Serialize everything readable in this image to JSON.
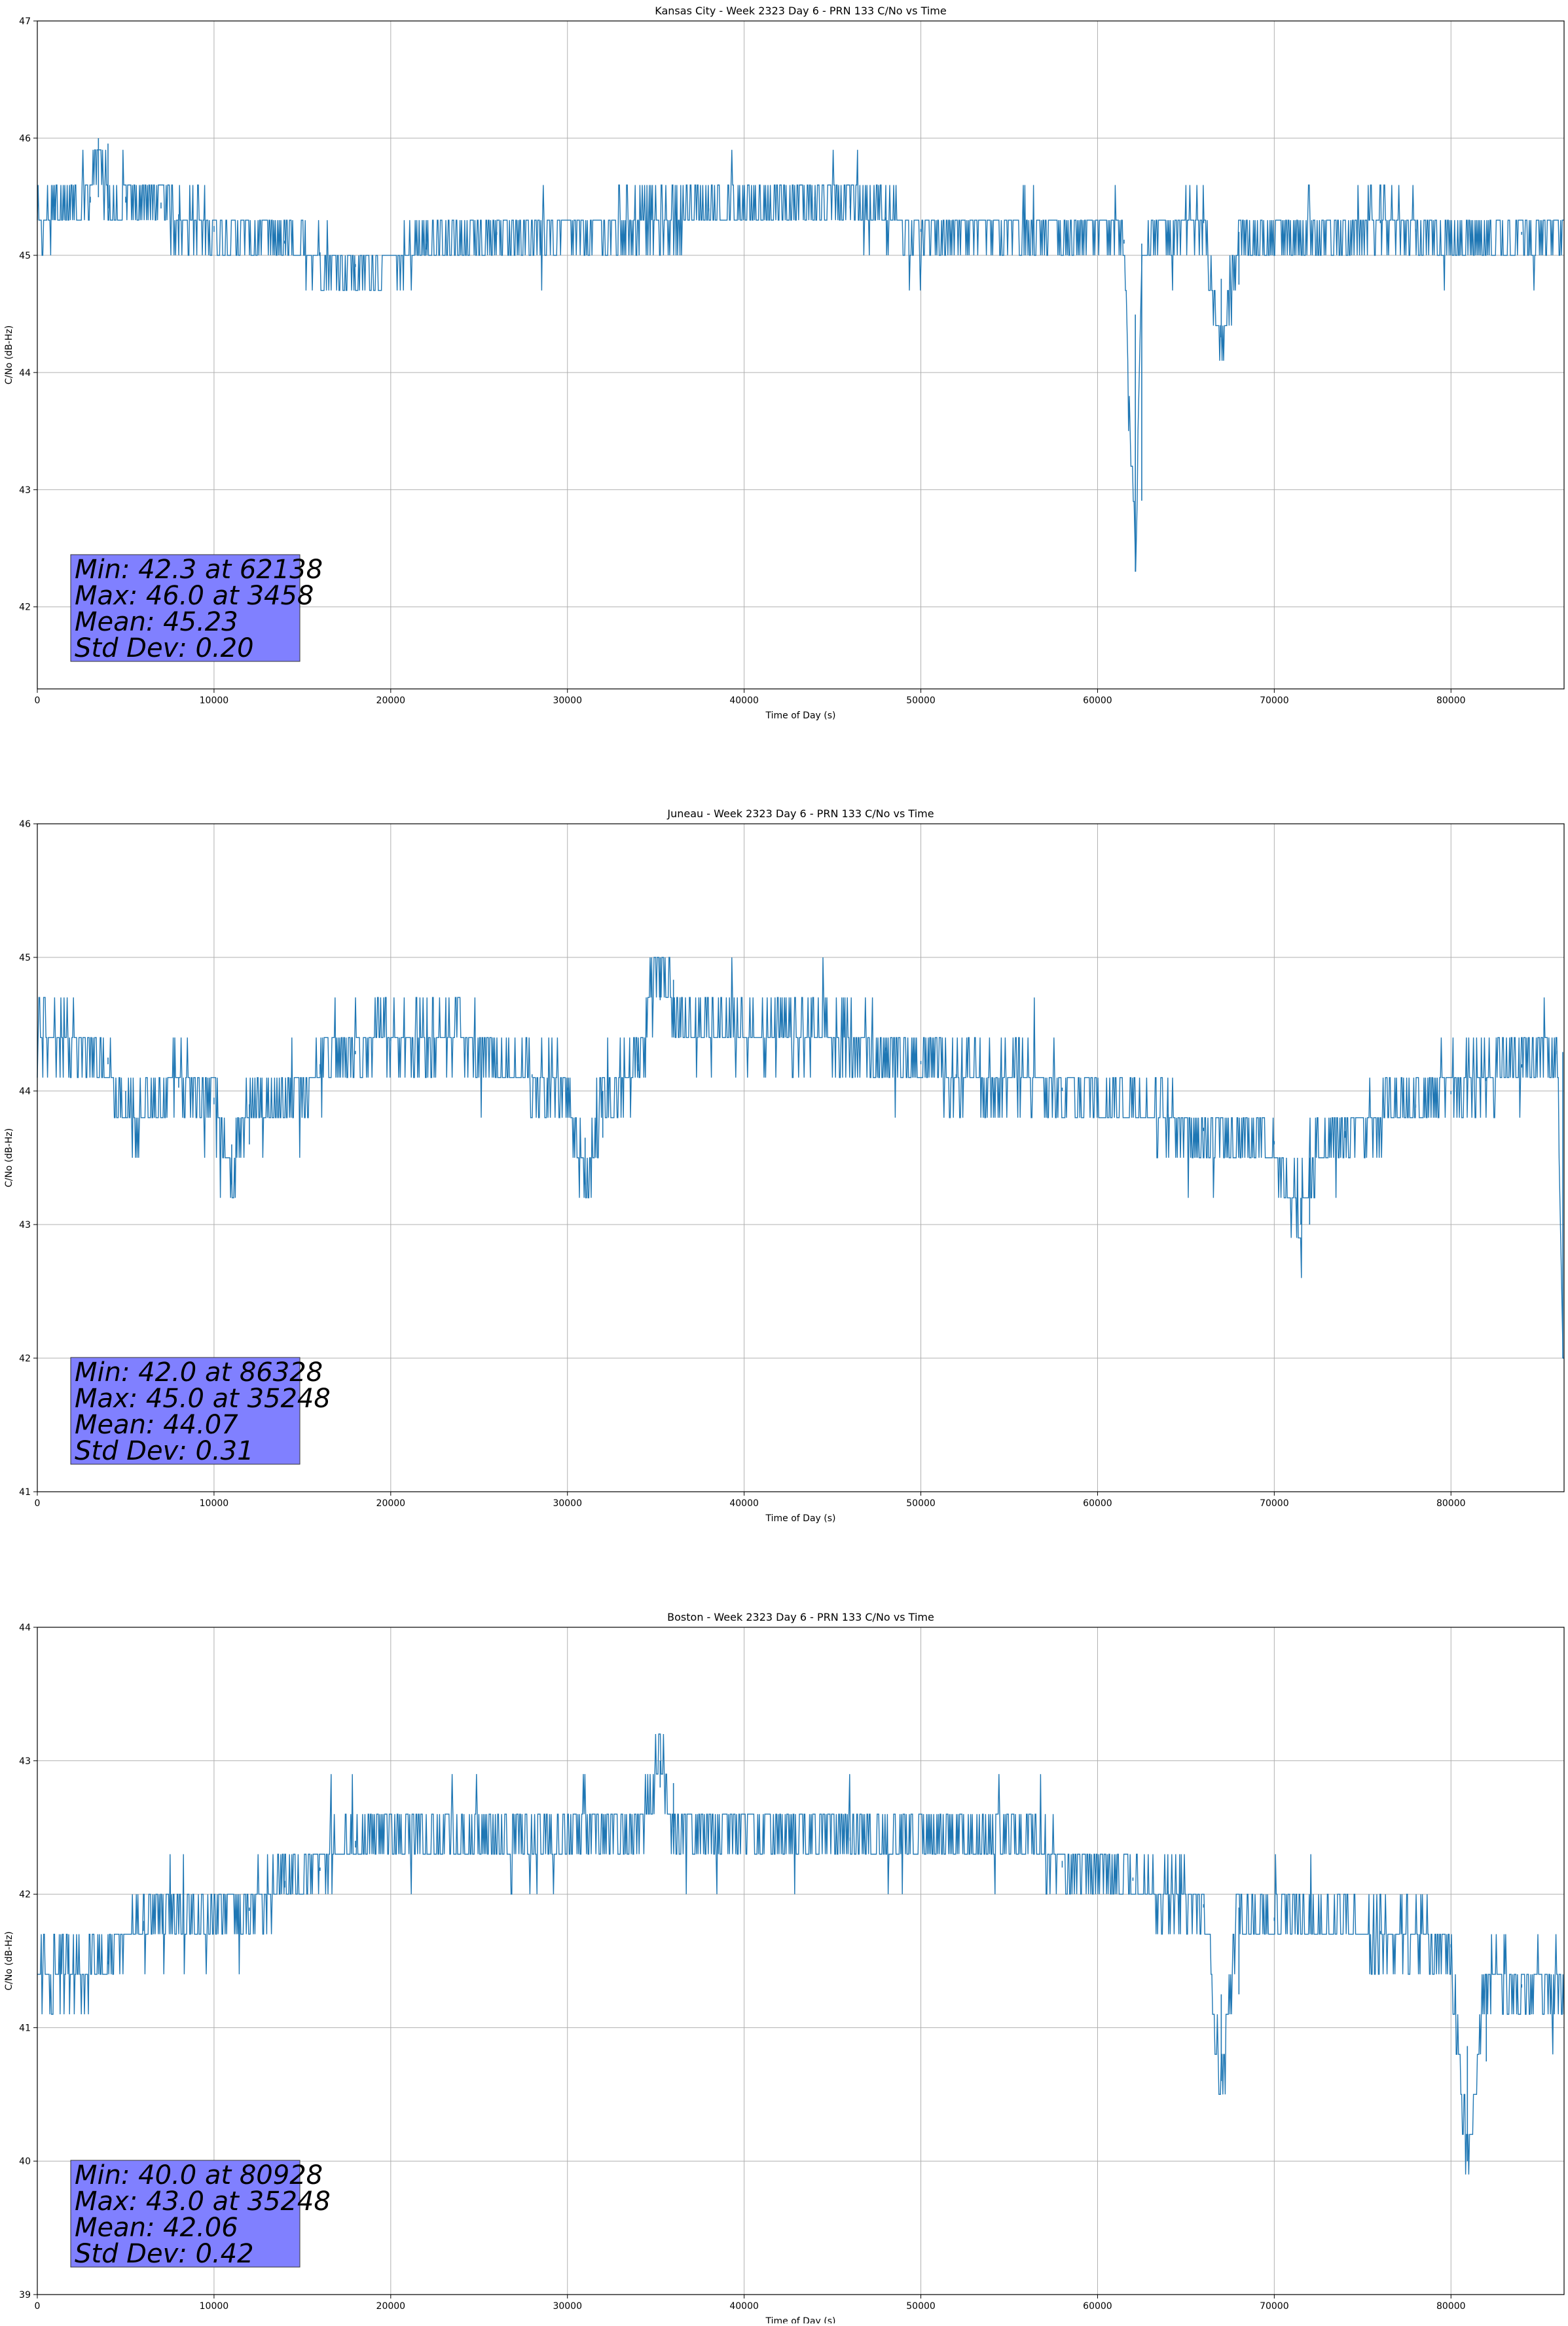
{
  "chart_data": [
    {
      "type": "line",
      "title": "Kansas City - Week 2323 Day 6 - PRN 133 C/No vs Time",
      "xlabel": "Time of Day (s)",
      "ylabel": "C/No (dB-Hz)",
      "xlim": [
        0,
        86400
      ],
      "ylim": [
        41.3,
        47
      ],
      "xticks": [
        0,
        10000,
        20000,
        30000,
        40000,
        50000,
        60000,
        70000,
        80000
      ],
      "yticks": [
        42,
        43,
        44,
        45,
        46,
        47
      ],
      "grid": true,
      "line_color": "#1f77b4",
      "series": [
        {
          "x": [
            0,
            1000,
            2000,
            3000,
            3458,
            4000,
            5000,
            6000,
            7000,
            8000,
            9000,
            10000,
            12000,
            14000,
            16000,
            18000,
            20000,
            22000,
            24000,
            26000,
            28000,
            30000,
            32000,
            34000,
            36000,
            38000,
            40000,
            42000,
            44000,
            46000,
            48000,
            50000,
            52000,
            54000,
            56000,
            58000,
            60000,
            61500,
            62138,
            62500,
            64000,
            66000,
            67000,
            68000,
            70000,
            72000,
            74000,
            76000,
            78000,
            80000,
            82000,
            84000,
            86400
          ],
          "y": [
            45.2,
            45.4,
            45.4,
            45.5,
            46.0,
            45.4,
            45.5,
            45.5,
            45.4,
            45.3,
            45.3,
            45.2,
            45.2,
            45.1,
            45.0,
            44.9,
            44.9,
            45.1,
            45.1,
            45.2,
            45.2,
            45.2,
            45.2,
            45.3,
            45.3,
            45.4,
            45.4,
            45.4,
            45.5,
            45.4,
            45.3,
            45.2,
            45.2,
            45.2,
            45.2,
            45.2,
            45.2,
            45.1,
            42.3,
            45.1,
            45.2,
            45.3,
            44.3,
            45.2,
            45.2,
            45.2,
            45.2,
            45.3,
            45.2,
            45.1,
            45.1,
            45.2,
            45.2
          ]
        }
      ],
      "stats": {
        "min": "Min: 42.3 at 62138",
        "max": "Max: 46.0 at 3458",
        "mean": "Mean: 45.23",
        "std": "Std Dev: 0.20"
      }
    },
    {
      "type": "line",
      "title": "Juneau - Week 2323 Day 6 - PRN 133 C/No vs Time",
      "xlabel": "Time of Day (s)",
      "ylabel": "C/No (dB-Hz)",
      "xlim": [
        0,
        86400
      ],
      "ylim": [
        41,
        46
      ],
      "xticks": [
        0,
        10000,
        20000,
        30000,
        40000,
        50000,
        60000,
        70000,
        80000
      ],
      "yticks": [
        41,
        42,
        43,
        44,
        45,
        46
      ],
      "grid": true,
      "line_color": "#1f77b4",
      "series": [
        {
          "x": [
            0,
            2000,
            4000,
            5000,
            6000,
            8000,
            10000,
            11000,
            12000,
            14000,
            16000,
            18000,
            20000,
            22000,
            24000,
            26000,
            28000,
            30000,
            31000,
            32000,
            34000,
            35248,
            36000,
            38000,
            40000,
            42000,
            44000,
            46000,
            48000,
            50000,
            52000,
            54000,
            56000,
            58000,
            60000,
            62000,
            64000,
            66000,
            68000,
            70000,
            71500,
            72000,
            74000,
            76000,
            78000,
            80000,
            82000,
            84000,
            86000,
            86328
          ],
          "y": [
            44.4,
            44.4,
            44.2,
            43.8,
            43.8,
            44.1,
            43.9,
            43.3,
            43.9,
            43.9,
            44.2,
            44.3,
            44.4,
            44.4,
            44.4,
            44.2,
            44.1,
            44.0,
            43.3,
            44.0,
            44.2,
            45.0,
            44.5,
            44.5,
            44.5,
            44.4,
            44.4,
            44.4,
            44.3,
            44.2,
            44.1,
            44.1,
            44.1,
            44.0,
            44.0,
            43.9,
            43.8,
            43.7,
            43.7,
            43.6,
            43.0,
            43.5,
            43.7,
            43.8,
            43.9,
            44.0,
            44.1,
            44.2,
            44.3,
            42.0
          ]
        }
      ],
      "stats": {
        "min": "Min: 42.0 at 86328",
        "max": "Max: 45.0 at 35248",
        "mean": "Mean: 44.07",
        "std": "Std Dev: 0.31"
      }
    },
    {
      "type": "line",
      "title": "Boston - Week 2323 Day 6 - PRN 133 C/No vs Time",
      "xlabel": "Time of Day (s)",
      "ylabel": "C/No (dB-Hz)",
      "xlim": [
        0,
        86400
      ],
      "ylim": [
        39,
        44
      ],
      "xticks": [
        0,
        10000,
        20000,
        30000,
        40000,
        50000,
        60000,
        70000,
        80000
      ],
      "yticks": [
        39,
        40,
        41,
        42,
        43,
        44
      ],
      "grid": true,
      "line_color": "#1f77b4",
      "series": [
        {
          "x": [
            0,
            2000,
            4000,
            6000,
            8000,
            10000,
            12000,
            14000,
            16000,
            18000,
            20000,
            22000,
            24000,
            26000,
            28000,
            30000,
            32000,
            34000,
            35248,
            36000,
            38000,
            40000,
            42000,
            44000,
            46000,
            48000,
            50000,
            52000,
            54000,
            56000,
            58000,
            60000,
            62000,
            64000,
            66000,
            67000,
            68000,
            70000,
            72000,
            74000,
            76000,
            78000,
            80000,
            80928,
            82000,
            84000,
            86400
          ],
          "y": [
            41.4,
            41.4,
            41.5,
            41.8,
            41.8,
            41.8,
            41.9,
            42.1,
            42.2,
            42.4,
            42.4,
            42.4,
            42.4,
            42.4,
            42.4,
            42.4,
            42.5,
            42.5,
            43.0,
            42.5,
            42.5,
            42.5,
            42.5,
            42.5,
            42.4,
            42.4,
            42.4,
            42.4,
            42.4,
            42.4,
            42.2,
            42.2,
            42.1,
            42.0,
            41.9,
            40.6,
            41.9,
            41.8,
            41.8,
            41.8,
            41.7,
            41.7,
            41.6,
            40.0,
            41.4,
            41.3,
            41.3
          ]
        }
      ],
      "stats": {
        "min": "Min: 40.0 at 80928",
        "max": "Max: 43.0 at 35248",
        "mean": "Mean: 42.06",
        "std": "Std Dev: 0.42"
      }
    }
  ]
}
